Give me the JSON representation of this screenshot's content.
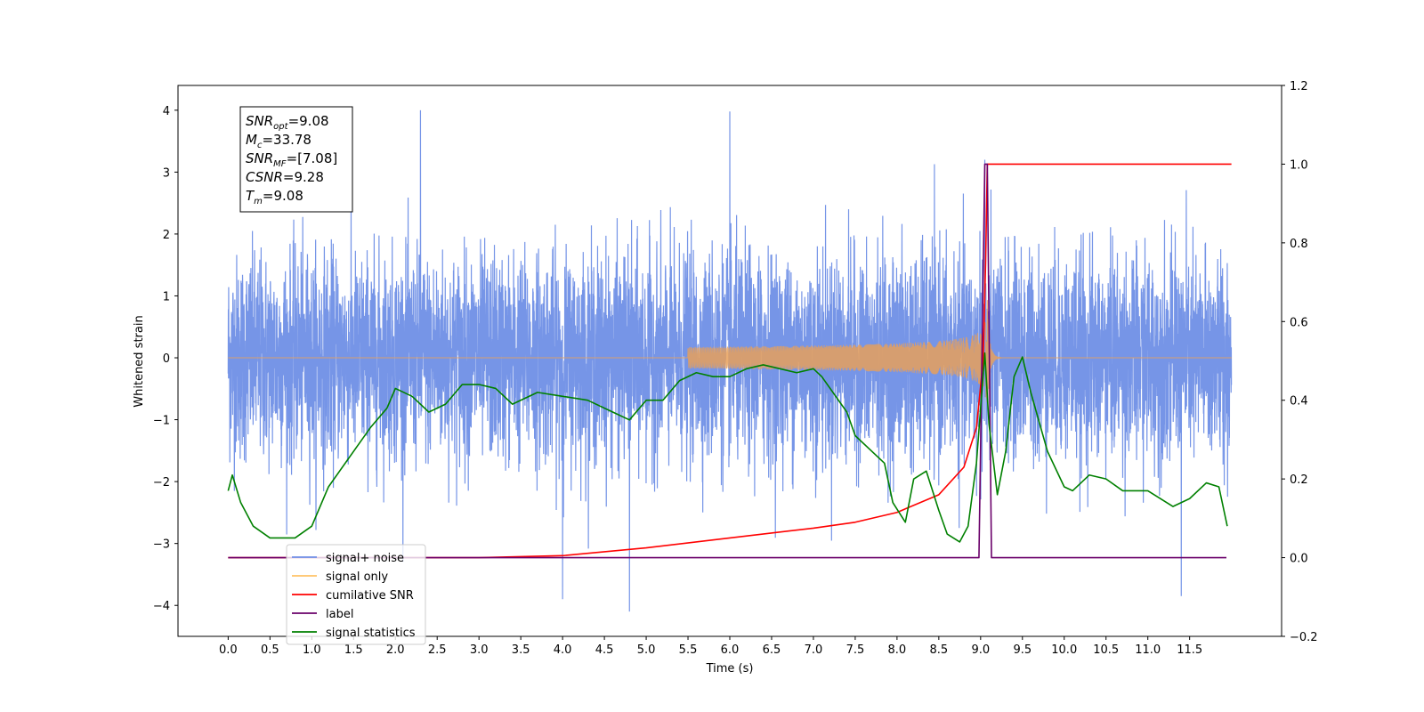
{
  "chart_data": {
    "type": "line",
    "title": "",
    "xlabel": "Time (s)",
    "ylabel": "Whitened strain",
    "xlim": [
      -0.6,
      12.6
    ],
    "ylim": [
      -4.5,
      4.4
    ],
    "ylim_right": [
      -0.2,
      1.2
    ],
    "x_ticks": [
      0.0,
      0.5,
      1.0,
      1.5,
      2.0,
      2.5,
      3.0,
      3.5,
      4.0,
      4.5,
      5.0,
      5.5,
      6.0,
      6.5,
      7.0,
      7.5,
      8.0,
      8.5,
      9.0,
      9.5,
      10.0,
      10.5,
      11.0,
      11.5
    ],
    "x_tick_labels": [
      "0.0",
      "0.5",
      "1.0",
      "1.5",
      "2.0",
      "2.5",
      "3.0",
      "3.5",
      "4.0",
      "4.5",
      "5.0",
      "5.5",
      "6.0",
      "6.5",
      "7.0",
      "7.5",
      "8.0",
      "8.5",
      "9.0",
      "9.5",
      "10.0",
      "10.5",
      "11.0",
      "11.5"
    ],
    "y_ticks": [
      -4,
      -3,
      -2,
      -1,
      0,
      1,
      2,
      3,
      4
    ],
    "y_tick_labels": [
      "−4",
      "−3",
      "−2",
      "−1",
      "0",
      "1",
      "2",
      "3",
      "4"
    ],
    "y_right_ticks": [
      -0.2,
      0.0,
      0.2,
      0.4,
      0.6,
      0.8,
      1.0,
      1.2
    ],
    "y_right_tick_labels": [
      "−0.2",
      "0.0",
      "0.2",
      "0.4",
      "0.6",
      "0.8",
      "1.0",
      "1.2"
    ],
    "annotation": [
      {
        "main": "SNR",
        "sub": "opt",
        "rest": "=9.08"
      },
      {
        "main": "M",
        "sub": "c",
        "rest": "=33.78"
      },
      {
        "main": "SNR",
        "sub": "MF",
        "rest": "=[7.08]"
      },
      {
        "main": "CSNR",
        "sub": "",
        "rest": "=9.28"
      },
      {
        "main": "T",
        "sub": "m",
        "rest": "=9.08"
      }
    ],
    "legend": {
      "placement": "lower-left",
      "entries": [
        {
          "label": "signal+ noise",
          "color": "#6f8fe6"
        },
        {
          "label": "signal only",
          "color": "#ffc266"
        },
        {
          "label": "cumilative SNR",
          "color": "#ff0000"
        },
        {
          "label": "label",
          "color": "#6a006a"
        },
        {
          "label": "signal statistics",
          "color": "#008000"
        }
      ]
    },
    "series": [
      {
        "name": "signal+ noise",
        "axis": "left",
        "color": "#6f8fe6",
        "t_start": 0.0,
        "t_end": 12.0,
        "std": 0.82,
        "peaks": [
          [
            2.3,
            4.0
          ],
          [
            6.0,
            3.98
          ],
          [
            4.0,
            -3.9
          ],
          [
            4.8,
            -4.1
          ],
          [
            11.4,
            -3.85
          ],
          [
            9.05,
            3.2
          ]
        ]
      },
      {
        "name": "signal only",
        "axis": "left",
        "color": "#e8a05a",
        "chirp_start": 5.5,
        "merger": 9.08,
        "ringdown_end": 9.25,
        "peak_amplitude": 0.95
      },
      {
        "name": "cumilative SNR",
        "axis": "right",
        "color": "#ff0000",
        "x": [
          0.0,
          3.0,
          4.0,
          5.0,
          6.0,
          7.0,
          7.5,
          8.0,
          8.5,
          8.8,
          8.95,
          9.03,
          9.06,
          9.08,
          12.0
        ],
        "values": [
          0.0,
          0.0,
          0.005,
          0.025,
          0.05,
          0.075,
          0.09,
          0.115,
          0.16,
          0.23,
          0.33,
          0.5,
          0.75,
          1.0,
          1.0
        ]
      },
      {
        "name": "label",
        "axis": "right",
        "color": "#6a006a",
        "x": [
          0.0,
          8.98,
          9.05,
          9.08,
          9.13,
          11.94
        ],
        "values": [
          0.0,
          0.0,
          1.0,
          1.0,
          0.0,
          0.0
        ]
      },
      {
        "name": "signal statistics",
        "axis": "right",
        "color": "#008000",
        "x": [
          0.0,
          0.05,
          0.15,
          0.3,
          0.5,
          0.65,
          0.8,
          1.0,
          1.2,
          1.5,
          1.7,
          1.9,
          2.0,
          2.2,
          2.4,
          2.6,
          2.8,
          3.0,
          3.2,
          3.4,
          3.7,
          4.0,
          4.3,
          4.6,
          4.8,
          5.0,
          5.2,
          5.4,
          5.6,
          5.8,
          6.0,
          6.2,
          6.4,
          6.6,
          6.8,
          7.0,
          7.1,
          7.2,
          7.4,
          7.5,
          7.7,
          7.85,
          7.95,
          8.1,
          8.2,
          8.35,
          8.5,
          8.6,
          8.75,
          8.85,
          8.95,
          9.05,
          9.1,
          9.2,
          9.3,
          9.4,
          9.5,
          9.6,
          9.8,
          10.0,
          10.1,
          10.3,
          10.5,
          10.7,
          11.0,
          11.3,
          11.5,
          11.7,
          11.85,
          11.95
        ],
        "values": [
          0.17,
          0.21,
          0.14,
          0.08,
          0.05,
          0.05,
          0.05,
          0.08,
          0.18,
          0.27,
          0.33,
          0.38,
          0.43,
          0.41,
          0.37,
          0.39,
          0.44,
          0.44,
          0.43,
          0.39,
          0.42,
          0.41,
          0.4,
          0.37,
          0.35,
          0.4,
          0.4,
          0.45,
          0.47,
          0.46,
          0.46,
          0.48,
          0.49,
          0.48,
          0.47,
          0.48,
          0.46,
          0.43,
          0.37,
          0.31,
          0.27,
          0.24,
          0.14,
          0.09,
          0.2,
          0.22,
          0.12,
          0.06,
          0.04,
          0.08,
          0.24,
          0.52,
          0.34,
          0.16,
          0.27,
          0.46,
          0.51,
          0.42,
          0.27,
          0.18,
          0.17,
          0.21,
          0.2,
          0.17,
          0.17,
          0.13,
          0.15,
          0.19,
          0.18,
          0.08
        ]
      }
    ]
  }
}
